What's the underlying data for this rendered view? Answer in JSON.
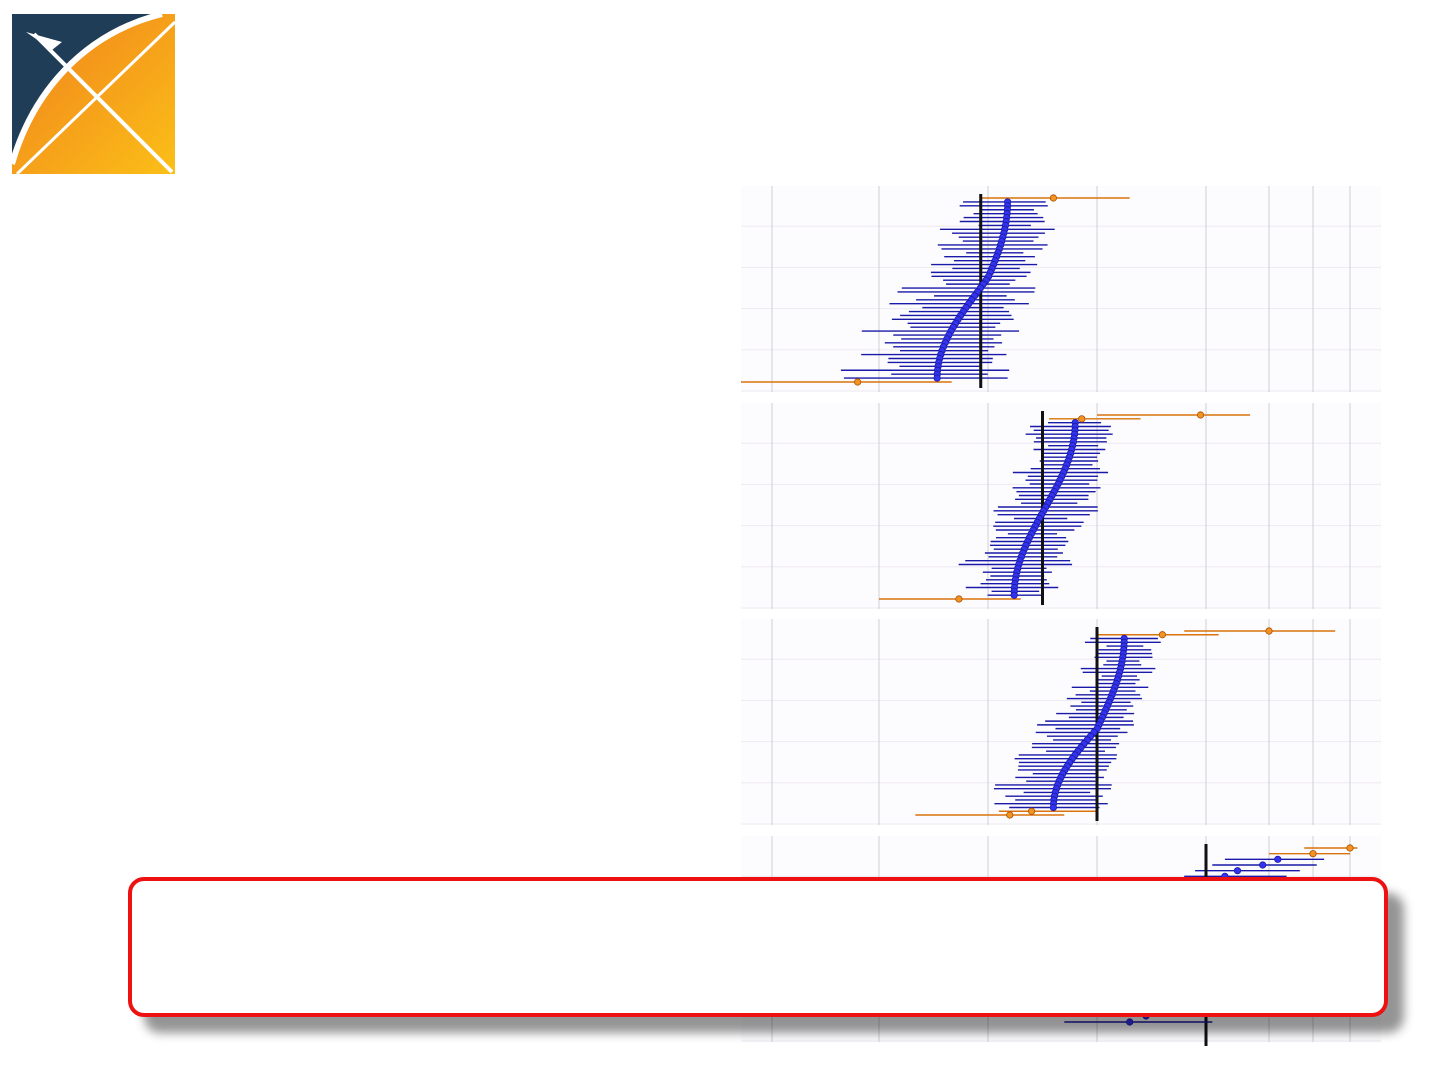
{
  "logo": {
    "icon": "cross-arrow-logo",
    "colors": {
      "dark": "#1f3d57",
      "orange": "#f39322",
      "yellow": "#fbbf17"
    }
  },
  "callout": {
    "text": "",
    "border_color": "#ee1111"
  },
  "chart_data": [
    {
      "type": "forest-caterpillar",
      "title": "",
      "xlabel": "",
      "ylabel": "",
      "x_gridlines": [
        0.05,
        0.2,
        0.5,
        1.0,
        2.0,
        3.0,
        4.0,
        5.0
      ],
      "reference_line": 0.48,
      "n_estimates": 46,
      "estimate_range": [
        0.36,
        0.59
      ],
      "ci_half_width_typical": 0.16,
      "outliers": [
        {
          "estimate": 0.8,
          "lower": 0.48,
          "upper": 1.3
        },
        {
          "estimate": 0.17,
          "lower": 0.0,
          "upper": 0.4
        }
      ],
      "colors": {
        "estimate": "#3333ee",
        "outlier": "#f39322",
        "ci": "#1a1aa8",
        "outlier_ci": "#d9730d",
        "reference": "#111111"
      }
    },
    {
      "type": "forest-caterpillar",
      "title": "",
      "xlabel": "",
      "ylabel": "",
      "x_gridlines": [
        0.05,
        0.2,
        0.5,
        1.0,
        2.0,
        3.0,
        4.0,
        5.0
      ],
      "reference_line": 0.75,
      "n_estimates": 46,
      "estimate_range": [
        0.62,
        0.9
      ],
      "ci_half_width_typical": 0.17,
      "outliers": [
        {
          "estimate": 1.95,
          "lower": 1.0,
          "upper": 2.7
        },
        {
          "estimate": 0.93,
          "lower": 0.78,
          "upper": 1.4
        },
        {
          "estimate": 0.66,
          "lower": 0.53,
          "upper": 0.82
        },
        {
          "estimate": 0.42,
          "lower": 0.2,
          "upper": 0.65
        }
      ],
      "colors": {
        "estimate": "#3333ee",
        "outlier": "#f39322",
        "ci": "#1a1aa8",
        "outlier_ci": "#d9730d",
        "reference": "#111111"
      }
    },
    {
      "type": "forest-caterpillar",
      "title": "",
      "xlabel": "",
      "ylabel": "",
      "x_gridlines": [
        0.05,
        0.2,
        0.5,
        1.0,
        2.0,
        3.0,
        4.0,
        5.0
      ],
      "reference_line": 1.0,
      "n_estimates": 46,
      "estimate_range": [
        0.8,
        1.25
      ],
      "ci_half_width_typical": 0.22,
      "outliers": [
        {
          "estimate": 3.0,
          "lower": 1.8,
          "upper": 4.6
        },
        {
          "estimate": 1.6,
          "lower": 1.0,
          "upper": 2.2
        },
        {
          "estimate": 0.7,
          "lower": 0.55,
          "upper": 1.0
        },
        {
          "estimate": 0.6,
          "lower": 0.3,
          "upper": 0.85
        }
      ],
      "colors": {
        "estimate": "#3333ee",
        "outlier": "#f39322",
        "ci": "#1a1aa8",
        "outlier_ci": "#d9730d",
        "reference": "#111111"
      }
    },
    {
      "type": "forest-caterpillar",
      "title": "",
      "xlabel": "",
      "ylabel": "",
      "x_gridlines": [
        0.05,
        0.2,
        0.5,
        1.0,
        2.0,
        3.0,
        4.0,
        5.0
      ],
      "reference_line": 2.0,
      "partially_hidden": true,
      "visible_points": [
        {
          "estimate": 5.0,
          "lower": 3.8,
          "upper": 5.2,
          "outlier": true
        },
        {
          "estimate": 4.0,
          "lower": 3.0,
          "upper": 5.0,
          "outlier": true
        },
        {
          "estimate": 3.2,
          "lower": 2.3,
          "upper": 4.3,
          "outlier": false
        },
        {
          "estimate": 2.9,
          "lower": 2.1,
          "upper": 4.1,
          "outlier": false
        },
        {
          "estimate": 2.5,
          "lower": 1.9,
          "upper": 3.7,
          "outlier": false
        },
        {
          "estimate": 2.3,
          "lower": 1.8,
          "upper": 3.4,
          "outlier": false
        },
        {
          "estimate": 2.2,
          "lower": 1.7,
          "upper": 3.1,
          "outlier": false
        },
        {
          "estimate": 2.1,
          "lower": 1.6,
          "upper": 2.9,
          "outlier": false
        },
        {
          "estimate": 2.0,
          "lower": 1.5,
          "upper": 2.8,
          "outlier": false
        },
        {
          "estimate": 1.9,
          "lower": 1.5,
          "upper": 2.6,
          "outlier": false
        },
        {
          "estimate": 1.65,
          "lower": 1.3,
          "upper": 2.05,
          "outlier": true
        },
        {
          "estimate": 1.5,
          "lower": 0.92,
          "upper": 2.25,
          "outlier": false
        },
        {
          "estimate": 1.35,
          "lower": 0.88,
          "upper": 2.3,
          "outlier": false
        }
      ],
      "colors": {
        "estimate": "#3333ee",
        "outlier": "#f39322",
        "ci": "#1a1aa8",
        "outlier_ci": "#d9730d",
        "reference": "#111111"
      }
    }
  ]
}
